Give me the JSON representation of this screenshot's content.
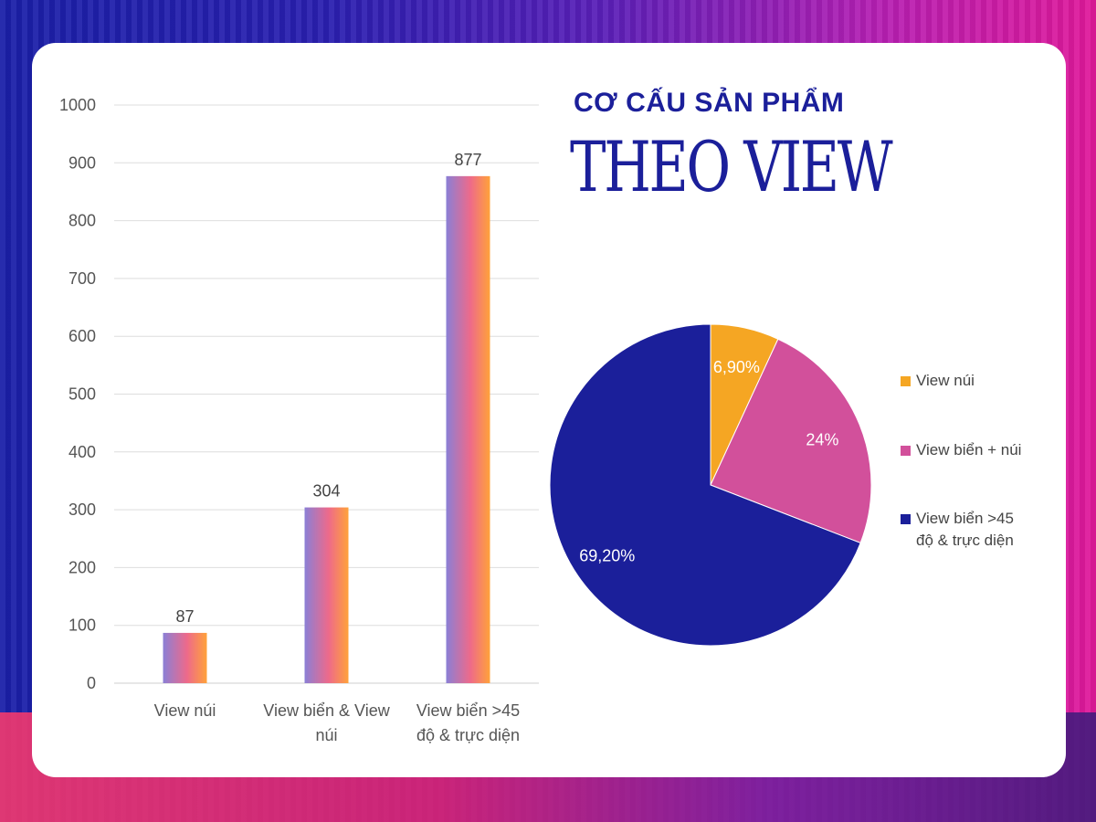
{
  "title": {
    "line1": "CƠ CẤU SẢN PHẨM",
    "line2": "THEO VIEW"
  },
  "colors": {
    "brand_blue": "#1b1f9a",
    "pie_orange": "#f5a623",
    "pie_pink": "#d2509b",
    "pie_navy": "#1b1f9a",
    "bar_gradient_start": "#8a7fd6",
    "bar_gradient_mid": "#ee6a8a",
    "bar_gradient_end": "#ffa23a"
  },
  "chart_data": [
    {
      "type": "bar",
      "categories": [
        "View núi",
        "View biển & View núi",
        "View biển >45 độ & trực diện"
      ],
      "category_lines": [
        [
          "View núi"
        ],
        [
          "View biển & View",
          "núi"
        ],
        [
          "View biển >45",
          "độ & trực diện"
        ]
      ],
      "values": [
        87,
        304,
        877
      ],
      "data_labels": [
        "87",
        "304",
        "877"
      ],
      "ylim": [
        0,
        1000
      ],
      "yticks": [
        0,
        100,
        200,
        300,
        400,
        500,
        600,
        700,
        800,
        900,
        1000
      ],
      "grid": true,
      "xlabel": "",
      "ylabel": ""
    },
    {
      "type": "pie",
      "labels": [
        "View núi",
        "View biển + núi",
        "View biển >45 độ & trực diện"
      ],
      "legend_lines": [
        [
          "View núi"
        ],
        [
          "View biển + núi"
        ],
        [
          "View biển >45",
          "độ & trực diện"
        ]
      ],
      "values": [
        6.9,
        24,
        69.2
      ],
      "data_labels": [
        "6,90%",
        "24%",
        "69,20%"
      ],
      "colors": [
        "#f5a623",
        "#d2509b",
        "#1b1f9a"
      ],
      "legend_position": "right"
    }
  ]
}
